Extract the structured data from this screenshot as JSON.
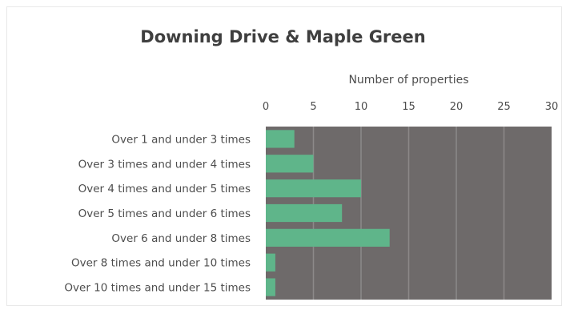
{
  "chart_data": {
    "type": "bar",
    "orientation": "horizontal",
    "title": "Downing Drive & Maple Green",
    "xlabel": "Number of properties",
    "ylabel": "",
    "xlim": [
      0,
      30
    ],
    "x_ticks": [
      0,
      5,
      10,
      15,
      20,
      25,
      30
    ],
    "x_axis_position": "top",
    "categories": [
      "Over 1 and under 3 times",
      "Over 3 times and under 4 times",
      "Over 4 times and under 5 times",
      "Over 5 times and under 6 times",
      "Over 6 and under 8 times",
      "Over 8 times and under 10 times",
      "Over 10 times and under 15 times"
    ],
    "values": [
      3,
      5,
      10,
      8,
      13,
      1,
      1
    ],
    "grid": true,
    "legend": "none",
    "colors": {
      "bar": "#5fb58a",
      "plot_background": "#6e6a6a",
      "gridline": "#8c8989"
    }
  }
}
